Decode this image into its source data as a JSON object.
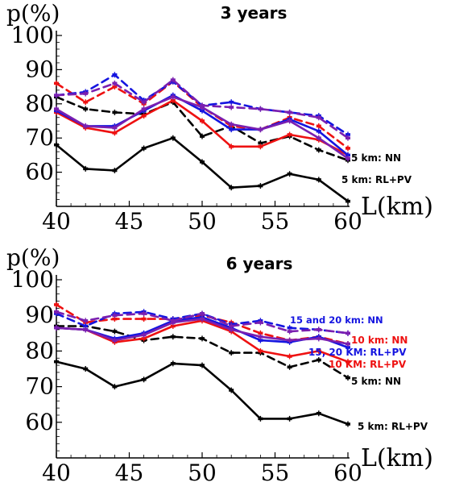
{
  "chart_data": [
    {
      "type": "line",
      "title": "3 years",
      "ylabel": "p(%)",
      "xlabel": "L(km)",
      "xlim": [
        40,
        60
      ],
      "ylim": [
        50,
        100
      ],
      "x_ticks": [
        40,
        45,
        50,
        55,
        60
      ],
      "y_ticks": [
        60,
        70,
        80,
        90,
        100
      ],
      "x": [
        40,
        42,
        44,
        46,
        48,
        50,
        52,
        54,
        56,
        58,
        60
      ],
      "series": [
        {
          "color": "#000000",
          "dashed": false,
          "values": [
            68,
            61,
            60.5,
            67,
            70,
            63,
            55.5,
            56,
            59.5,
            57.8,
            51.5
          ]
        },
        {
          "color": "#000000",
          "dashed": true,
          "values": [
            82,
            78.5,
            77.5,
            77,
            80.5,
            70.5,
            73.5,
            68.5,
            70.5,
            66.5,
            63.5
          ]
        },
        {
          "color": "#ee1111",
          "dashed": false,
          "values": [
            77.5,
            73,
            71.5,
            76.5,
            81,
            75,
            67.5,
            67.5,
            71,
            69.5,
            65
          ]
        },
        {
          "color": "#ee1111",
          "dashed": true,
          "values": [
            86,
            80.5,
            85,
            80,
            86.5,
            79,
            73.5,
            72.5,
            76,
            73.5,
            67
          ]
        },
        {
          "color": "#1515e0",
          "dashed": false,
          "values": [
            78,
            73.5,
            73.5,
            78,
            82.5,
            78,
            72.5,
            72.5,
            75.5,
            72,
            65
          ]
        },
        {
          "color": "#1515e0",
          "dashed": true,
          "values": [
            82.5,
            83.5,
            88.5,
            81,
            86.5,
            79.5,
            80.5,
            78.5,
            77.5,
            76.5,
            71
          ]
        },
        {
          "color": "#7a1fb0",
          "dashed": false,
          "values": [
            78.5,
            73.5,
            73,
            78.5,
            82,
            79,
            74,
            72.5,
            75,
            70,
            64
          ]
        },
        {
          "color": "#7a1fb0",
          "dashed": true,
          "values": [
            82.5,
            83,
            86,
            80.5,
            87,
            79.5,
            79,
            78.5,
            77.5,
            76,
            70
          ]
        }
      ],
      "annotations": [
        {
          "text": "5 km: NN",
          "color": "#000000"
        },
        {
          "text": "5 km: RL+PV",
          "color": "#000000"
        }
      ]
    },
    {
      "type": "line",
      "title": "6 years",
      "ylabel": "p(%)",
      "xlabel": "L(km)",
      "xlim": [
        40,
        60
      ],
      "ylim": [
        50,
        100
      ],
      "x_ticks": [
        40,
        45,
        50,
        55,
        60
      ],
      "y_ticks": [
        60,
        70,
        80,
        90,
        100
      ],
      "x": [
        40,
        42,
        44,
        46,
        48,
        50,
        52,
        54,
        56,
        58,
        60
      ],
      "series": [
        {
          "color": "#000000",
          "dashed": false,
          "values": [
            77,
            75,
            70,
            72,
            76.5,
            76,
            69,
            61,
            61,
            62.5,
            59.5
          ]
        },
        {
          "color": "#000000",
          "dashed": true,
          "values": [
            87,
            87,
            85.5,
            83,
            84,
            83.5,
            79.5,
            79.5,
            75.5,
            77.5,
            72.5
          ]
        },
        {
          "color": "#ee1111",
          "dashed": false,
          "values": [
            86.5,
            86,
            82.5,
            83.5,
            87,
            88.5,
            85.5,
            80,
            78.5,
            80,
            77
          ]
        },
        {
          "color": "#ee1111",
          "dashed": true,
          "values": [
            93,
            88,
            89,
            89,
            89,
            90,
            88,
            85,
            83,
            84,
            82
          ]
        },
        {
          "color": "#1515e0",
          "dashed": false,
          "values": [
            86.5,
            86,
            83.5,
            85,
            88.5,
            89.5,
            86.5,
            83,
            82.5,
            84,
            81
          ]
        },
        {
          "color": "#1515e0",
          "dashed": true,
          "values": [
            90.5,
            87,
            90.5,
            91,
            89,
            90.5,
            87.5,
            88.5,
            86.5,
            86,
            85
          ]
        },
        {
          "color": "#7a1fb0",
          "dashed": false,
          "values": [
            86.5,
            86,
            83,
            84.5,
            88,
            89,
            86,
            84,
            83,
            83.5,
            82
          ]
        },
        {
          "color": "#7a1fb0",
          "dashed": true,
          "values": [
            91,
            88.5,
            90,
            90.5,
            88.5,
            90.5,
            87,
            88,
            85.5,
            86,
            85
          ]
        }
      ],
      "annotations": [
        {
          "text": "15 and 20 km: NN",
          "color": "#1515e0"
        },
        {
          "text": "10 km: NN",
          "color": "#ee1111"
        },
        {
          "text": "15, 20 KM: RL+PV",
          "color": "#1515e0"
        },
        {
          "text": "10 KM: RL+PV",
          "color": "#ee1111"
        },
        {
          "text": "5 km: NN",
          "color": "#000000"
        },
        {
          "text": "5 km: RL+PV",
          "color": "#000000"
        }
      ]
    }
  ]
}
